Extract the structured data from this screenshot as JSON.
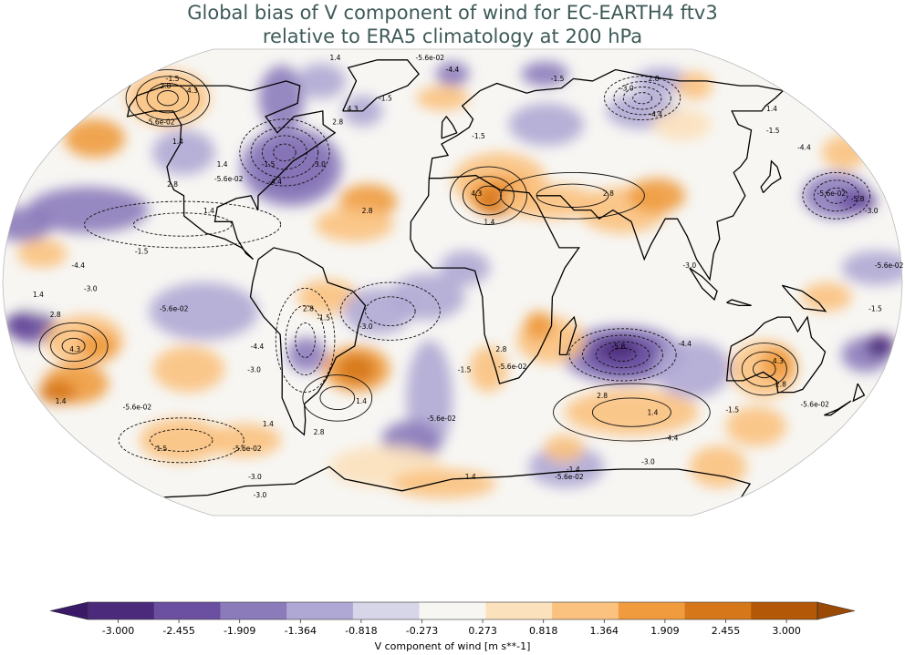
{
  "title_line1": "Global bias of V component of wind for EC-EARTH4 ftv3",
  "title_line2": "relative to ERA5 climatology at 200 hPa",
  "colorbar": {
    "label": "V component of wind [m s**-1]",
    "ticks": [
      "-3.000",
      "-2.455",
      "-1.909",
      "-1.364",
      "-0.818",
      "-0.273",
      "0.273",
      "0.818",
      "1.364",
      "1.909",
      "2.455",
      "3.000"
    ],
    "colors": [
      "#4b2a7b",
      "#6b4fa0",
      "#8c7bbb",
      "#b0a8d4",
      "#d7d5e8",
      "#f7f6f3",
      "#fce1bd",
      "#fbc27f",
      "#f09b3e",
      "#d6771a",
      "#b35806"
    ],
    "under_color": "#3a1a68",
    "over_color": "#9a4a05"
  },
  "contour_labels": [
    {
      "text": "-1.5",
      "lon": -160,
      "lat": 72
    },
    {
      "text": "-5.6e-02",
      "lon": -140,
      "lat": 55
    },
    {
      "text": "1.4",
      "lon": -125,
      "lat": 48
    },
    {
      "text": "4.3",
      "lon": -140,
      "lat": 67
    },
    {
      "text": "2.8",
      "lon": -158,
      "lat": 69
    },
    {
      "text": "1.4",
      "lon": -78,
      "lat": 82
    },
    {
      "text": "-5.6e-02",
      "lon": -15,
      "lat": 82
    },
    {
      "text": "-1.5",
      "lon": -35,
      "lat": 64
    },
    {
      "text": "2.8",
      "lon": -55,
      "lat": 55
    },
    {
      "text": "4.3",
      "lon": -50,
      "lat": 60
    },
    {
      "text": "-1.5",
      "lon": -80,
      "lat": 40
    },
    {
      "text": "-3.0",
      "lon": -58,
      "lat": 40
    },
    {
      "text": "-4.4",
      "lon": -75,
      "lat": 34
    },
    {
      "text": "1.4",
      "lon": -100,
      "lat": 40
    },
    {
      "text": "2.8",
      "lon": -118,
      "lat": 33
    },
    {
      "text": "-5.6e-02",
      "lon": -95,
      "lat": 35
    },
    {
      "text": "2.8",
      "lon": -35,
      "lat": 24
    },
    {
      "text": "1.4",
      "lon": -100,
      "lat": 24
    },
    {
      "text": "-1.5",
      "lon": -125,
      "lat": 10
    },
    {
      "text": "-4.4",
      "lon": -150,
      "lat": 5
    },
    {
      "text": "-3.0",
      "lon": -145,
      "lat": -3
    },
    {
      "text": "1.4",
      "lon": -166,
      "lat": -5
    },
    {
      "text": "2.8",
      "lon": -160,
      "lat": -12
    },
    {
      "text": "4.3",
      "lon": -155,
      "lat": -24
    },
    {
      "text": "-5.6e-02",
      "lon": -112,
      "lat": -10
    },
    {
      "text": "2.8",
      "lon": -58,
      "lat": -10
    },
    {
      "text": "-1.5",
      "lon": -52,
      "lat": -13
    },
    {
      "text": "-3.0",
      "lon": -35,
      "lat": -16
    },
    {
      "text": "-4.4",
      "lon": -80,
      "lat": -23
    },
    {
      "text": "-3.0",
      "lon": -83,
      "lat": -31
    },
    {
      "text": "-1.5",
      "lon": 5,
      "lat": -31
    },
    {
      "text": "-5.6e-02",
      "lon": 25,
      "lat": -30
    },
    {
      "text": "2.8",
      "lon": 20,
      "lat": -24
    },
    {
      "text": "1.4",
      "lon": -40,
      "lat": -42
    },
    {
      "text": "2.8",
      "lon": -63,
      "lat": -53
    },
    {
      "text": "1.4",
      "lon": -85,
      "lat": -50
    },
    {
      "text": "-5.6e-02",
      "lon": -5,
      "lat": -48
    },
    {
      "text": "-5.6e-02",
      "lon": -140,
      "lat": -44
    },
    {
      "text": "1.4",
      "lon": -172,
      "lat": -42
    },
    {
      "text": "-1.5",
      "lon": -145,
      "lat": -59
    },
    {
      "text": "-5.6e-02",
      "lon": -102,
      "lat": -59
    },
    {
      "text": "-3.0",
      "lon": -110,
      "lat": -70
    },
    {
      "text": "1.4",
      "lon": 10,
      "lat": -70
    },
    {
      "text": "4.3",
      "lon": 10,
      "lat": 30
    },
    {
      "text": "1.4",
      "lon": 15,
      "lat": 20
    },
    {
      "text": "-1.5",
      "lon": 12,
      "lat": 50
    },
    {
      "text": "-4.4",
      "lon": 0,
      "lat": 76
    },
    {
      "text": "2.8",
      "lon": 65,
      "lat": 30
    },
    {
      "text": "-3.0",
      "lon": 95,
      "lat": 68
    },
    {
      "text": "2.8",
      "lon": 115,
      "lat": 72
    },
    {
      "text": "-4.4",
      "lon": 100,
      "lat": 58
    },
    {
      "text": "-1.5",
      "lon": 60,
      "lat": 72
    },
    {
      "text": "-3.0",
      "lon": 95,
      "lat": 5
    },
    {
      "text": "-4.4",
      "lon": 95,
      "lat": -22
    },
    {
      "text": "-5.8",
      "lon": 68,
      "lat": -23
    },
    {
      "text": "2.8",
      "lon": 65,
      "lat": -40
    },
    {
      "text": "1.4",
      "lon": 90,
      "lat": -46
    },
    {
      "text": "-4.4",
      "lon": 105,
      "lat": -55
    },
    {
      "text": "-3.0",
      "lon": 102,
      "lat": -64
    },
    {
      "text": "4.3",
      "lon": 135,
      "lat": -28
    },
    {
      "text": "2.8",
      "lon": 140,
      "lat": -36
    },
    {
      "text": "-1.5",
      "lon": 125,
      "lat": -45
    },
    {
      "text": "-5.6e-02",
      "lon": 160,
      "lat": -43
    },
    {
      "text": "-1.5",
      "lon": 170,
      "lat": -10
    },
    {
      "text": "-5.6e-02",
      "lon": 175,
      "lat": 5
    },
    {
      "text": "-5.6e-02",
      "lon": 158,
      "lat": 30
    },
    {
      "text": "-3.0",
      "lon": 172,
      "lat": 24
    },
    {
      "text": "-5.8",
      "lon": 168,
      "lat": 28
    },
    {
      "text": "-1.5",
      "lon": 150,
      "lat": 52
    },
    {
      "text": "-4.4",
      "lon": 158,
      "lat": 46
    },
    {
      "text": "1.4",
      "lon": 160,
      "lat": 60
    },
    {
      "text": "-5.6e-02",
      "lon": 65,
      "lat": -70
    },
    {
      "text": "-1.4",
      "lon": 65,
      "lat": -67
    },
    {
      "text": "-3.0",
      "lon": -120,
      "lat": -78
    }
  ]
}
